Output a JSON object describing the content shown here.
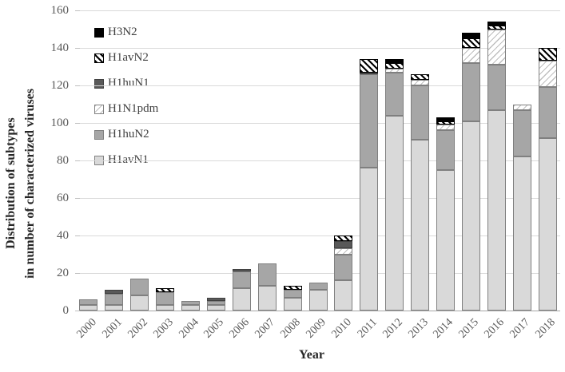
{
  "figure": {
    "x_axis_title": "Year",
    "y_axis_title_line1": "Distribution of subtypes",
    "y_axis_title_line2": "in number of characterized viruses"
  },
  "chart_data": {
    "type": "bar",
    "stacked": true,
    "title": "",
    "xlabel": "Year",
    "ylabel": "Distribution of subtypes in number of characterized viruses",
    "ylim": [
      0,
      160
    ],
    "yticks": [
      0,
      20,
      40,
      60,
      80,
      100,
      120,
      140,
      160
    ],
    "grid": true,
    "legend_position": "inside-top-left",
    "legend_order_top_to_bottom": [
      "H3N2",
      "H1avN2",
      "H1huN1",
      "H1N1pdm",
      "H1huN2",
      "H1avN1"
    ],
    "categories": [
      "2000",
      "2001",
      "2002",
      "2003",
      "2004",
      "2005",
      "2006",
      "2007",
      "2008",
      "2009",
      "2010",
      "2011",
      "2012",
      "2013",
      "2014",
      "2015",
      "2016",
      "2017",
      "2018"
    ],
    "series": [
      {
        "name": "H1avN1",
        "color": "#d9d9d9",
        "pattern": "solid-light",
        "values": [
          3,
          3,
          8,
          3,
          3,
          3,
          12,
          13,
          7,
          11,
          16,
          76,
          104,
          91,
          75,
          101,
          107,
          82,
          92
        ]
      },
      {
        "name": "H1huN2",
        "color": "#a6a6a6",
        "pattern": "solid-med",
        "values": [
          3,
          6,
          9,
          7,
          2,
          2,
          9,
          12,
          4,
          4,
          14,
          50,
          23,
          29,
          21,
          31,
          24,
          25,
          27
        ]
      },
      {
        "name": "H1N1pdm",
        "color": "#ffffff",
        "hatch_color": "#bfbfbf",
        "pattern": "hatch-light",
        "values": [
          0,
          0,
          0,
          0,
          0,
          0,
          0,
          0,
          0,
          0,
          3,
          0,
          2,
          3,
          3,
          8,
          19,
          3,
          14
        ]
      },
      {
        "name": "H1huN1",
        "color": "#595959",
        "pattern": "solid-dark",
        "values": [
          0,
          2,
          0,
          0,
          0,
          2,
          1,
          0,
          0,
          0,
          4,
          1,
          0,
          0,
          0,
          0,
          0,
          0,
          0
        ]
      },
      {
        "name": "H1avN2",
        "color": "#ffffff",
        "hatch_color": "#000000",
        "pattern": "hatch-black",
        "values": [
          0,
          0,
          0,
          2,
          0,
          0,
          0,
          0,
          2,
          0,
          3,
          7,
          3,
          3,
          2,
          5,
          2,
          0,
          7
        ]
      },
      {
        "name": "H3N2",
        "color": "#000000",
        "pattern": "solid-black",
        "values": [
          0,
          0,
          0,
          0,
          0,
          0,
          0,
          0,
          0,
          0,
          0,
          0,
          2,
          0,
          2,
          3,
          2,
          0,
          0
        ]
      }
    ],
    "totals": [
      6,
      11,
      17,
      12,
      5,
      7,
      22,
      25,
      13,
      15,
      40,
      134,
      134,
      126,
      103,
      148,
      154,
      110,
      140
    ]
  }
}
